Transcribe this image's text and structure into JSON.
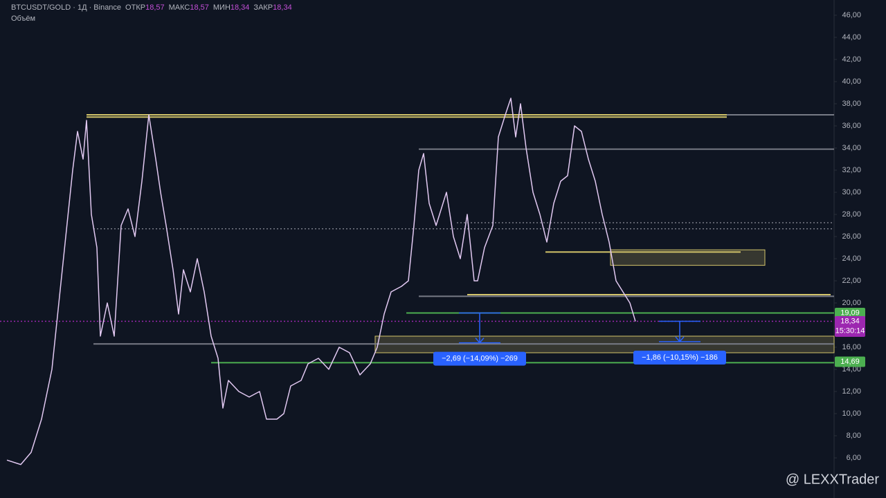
{
  "chart_data": {
    "type": "line",
    "header": {
      "symbol": "BTCUSDT/GOLD · 1Д · Binance",
      "open_label": "ОТКР",
      "open": "18,57",
      "high_label": "МАКС",
      "high": "18,57",
      "low_label": "МИН",
      "low": "18,34",
      "close_label": "ЗАКР",
      "close": "18,34",
      "volume_label": "Объём"
    },
    "watermark": "@ LEXXTrader",
    "xlim": [
      0,
      1205
    ],
    "ylim": [
      2.375,
      47.375
    ],
    "yticks": [
      {
        "value": 6,
        "label": "6,00"
      },
      {
        "value": 8,
        "label": "8,00"
      },
      {
        "value": 10,
        "label": "10,00"
      },
      {
        "value": 12,
        "label": "12,00"
      },
      {
        "value": 14,
        "label": "14,00"
      },
      {
        "value": 16,
        "label": "16,00"
      },
      {
        "value": 18,
        "label": "18,00"
      },
      {
        "value": 20,
        "label": "20,00"
      },
      {
        "value": 22,
        "label": "22,00"
      },
      {
        "value": 24,
        "label": "24,00"
      },
      {
        "value": 26,
        "label": "26,00"
      },
      {
        "value": 28,
        "label": "28,00"
      },
      {
        "value": 30,
        "label": "30,00"
      },
      {
        "value": 32,
        "label": "32,00"
      },
      {
        "value": 34,
        "label": "34,00"
      },
      {
        "value": 36,
        "label": "36,00"
      },
      {
        "value": 38,
        "label": "38,00"
      },
      {
        "value": 40,
        "label": "40,00"
      },
      {
        "value": 42,
        "label": "42,00"
      },
      {
        "value": 44,
        "label": "44,00"
      },
      {
        "value": 46,
        "label": "46,00"
      }
    ],
    "series": [
      {
        "color": "#e2c9f2",
        "x": [
          10,
          30,
          45,
          60,
          75,
          85,
          95,
          105,
          112,
          120,
          125,
          132,
          140,
          145,
          155,
          165,
          175,
          185,
          195,
          205,
          215,
          225,
          232,
          240,
          250,
          258,
          265,
          275,
          285,
          295,
          305,
          315,
          322,
          330,
          345,
          360,
          375,
          385,
          400,
          410,
          420,
          435,
          445,
          460,
          475,
          490,
          505,
          520,
          535,
          545,
          555,
          565,
          580,
          590,
          598,
          605,
          612,
          620,
          630,
          645,
          655,
          665,
          675,
          685,
          690,
          700,
          712,
          720,
          730,
          738,
          745,
          752,
          760,
          770,
          780,
          790,
          800,
          810,
          820,
          830,
          840,
          850,
          860,
          870,
          880,
          890,
          900,
          910,
          918
        ],
        "values": [
          5.8,
          5.4,
          6.5,
          9.5,
          14,
          20,
          26,
          32,
          35.5,
          33,
          36.5,
          28,
          25,
          17,
          20,
          17,
          27,
          28.5,
          26,
          31,
          37,
          33,
          30,
          27,
          23,
          19,
          23,
          21,
          24,
          21,
          17,
          15,
          10.5,
          13,
          12,
          11.5,
          12,
          9.5,
          9.5,
          10,
          12.5,
          13,
          14.5,
          15,
          14,
          16,
          15.5,
          13.5,
          14.5,
          16,
          19,
          21,
          21.5,
          22,
          27,
          32,
          33.5,
          29,
          27,
          30,
          26,
          24,
          28,
          22,
          22,
          25,
          27,
          35,
          37,
          38.5,
          35,
          38,
          34,
          30,
          28,
          25.5,
          29,
          31,
          31.5,
          36,
          35.5,
          33,
          31,
          28,
          25.5,
          22,
          21,
          20,
          18.34
        ]
      }
    ],
    "levels": [
      {
        "price": 37.0,
        "from": 125,
        "to": 1110,
        "color": "#d4c56a",
        "style": "solid"
      },
      {
        "price": 36.8,
        "from": 125,
        "to": 1050,
        "color": "#d4c56a",
        "style": "solid"
      },
      {
        "price": 37.0,
        "from": 1050,
        "to": 1205,
        "color": "#787b86",
        "style": "solid"
      },
      {
        "price": 33.9,
        "from": 605,
        "to": 1205,
        "color": "#787b86",
        "style": "solid"
      },
      {
        "price": 27.25,
        "from": 660,
        "to": 1205,
        "color": "#787b86",
        "style": "dotted"
      },
      {
        "price": 26.7,
        "from": 135,
        "to": 1205,
        "color": "#787b86",
        "style": "dotted"
      },
      {
        "price": 24.6,
        "from": 788,
        "to": 1070,
        "color": "#d4c56a",
        "style": "solid"
      },
      {
        "price": 20.6,
        "from": 605,
        "to": 1205,
        "color": "#787b86",
        "style": "solid"
      },
      {
        "price": 20.75,
        "from": 675,
        "to": 1200,
        "color": "#d4c56a",
        "style": "solid"
      },
      {
        "price": 19.09,
        "from": 587,
        "to": 1205,
        "color": "#4caf50",
        "style": "solid"
      },
      {
        "price": 18.34,
        "from": 0,
        "to": 1205,
        "color": "#9c27b0",
        "style": "dotted"
      },
      {
        "price": 16.3,
        "from": 135,
        "to": 1205,
        "color": "#787b86",
        "style": "solid"
      },
      {
        "price": 14.6,
        "from": 305,
        "to": 1205,
        "color": "#4caf50",
        "style": "solid"
      }
    ],
    "zones": [
      {
        "top": 24.8,
        "bottom": 23.4,
        "from": 882,
        "to": 1105,
        "color": "#d4c56a"
      },
      {
        "top": 17.0,
        "bottom": 15.5,
        "from": 542,
        "to": 1205,
        "color": "#d4c56a"
      }
    ],
    "measures": [
      {
        "from": 19.09,
        "to": 16.4,
        "x": 693,
        "label": "−2,69 (−14,09%) −269"
      },
      {
        "from": 18.34,
        "to": 16.5,
        "x": 982,
        "label": "−1,86 (−10,15%) −186"
      }
    ],
    "price_labels": [
      {
        "value": 19.09,
        "label": "19,09",
        "color": "#4caf50"
      },
      {
        "value": 18.34,
        "label": "18,34",
        "time": "15:30:14",
        "color": "#9c27b0"
      },
      {
        "value": 14.69,
        "label": "14,69",
        "color": "#4caf50"
      }
    ]
  }
}
